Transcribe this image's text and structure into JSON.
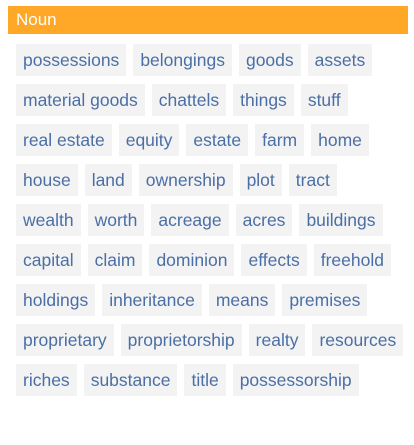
{
  "section": {
    "header": "Noun",
    "words": [
      "possessions",
      "belongings",
      "goods",
      "assets",
      "material goods",
      "chattels",
      "things",
      "stuff",
      "real estate",
      "equity",
      "estate",
      "farm",
      "home",
      "house",
      "land",
      "ownership",
      "plot",
      "tract",
      "wealth",
      "worth",
      "acreage",
      "acres",
      "buildings",
      "capital",
      "claim",
      "dominion",
      "effects",
      "freehold",
      "holdings",
      "inheritance",
      "means",
      "premises",
      "proprietary",
      "proprietorship",
      "realty",
      "resources",
      "riches",
      "substance",
      "title",
      "possessorship"
    ]
  },
  "colors": {
    "header_bg": "#ffa827",
    "chip_bg": "#f3f3f3",
    "chip_text": "#4a6fa6"
  }
}
